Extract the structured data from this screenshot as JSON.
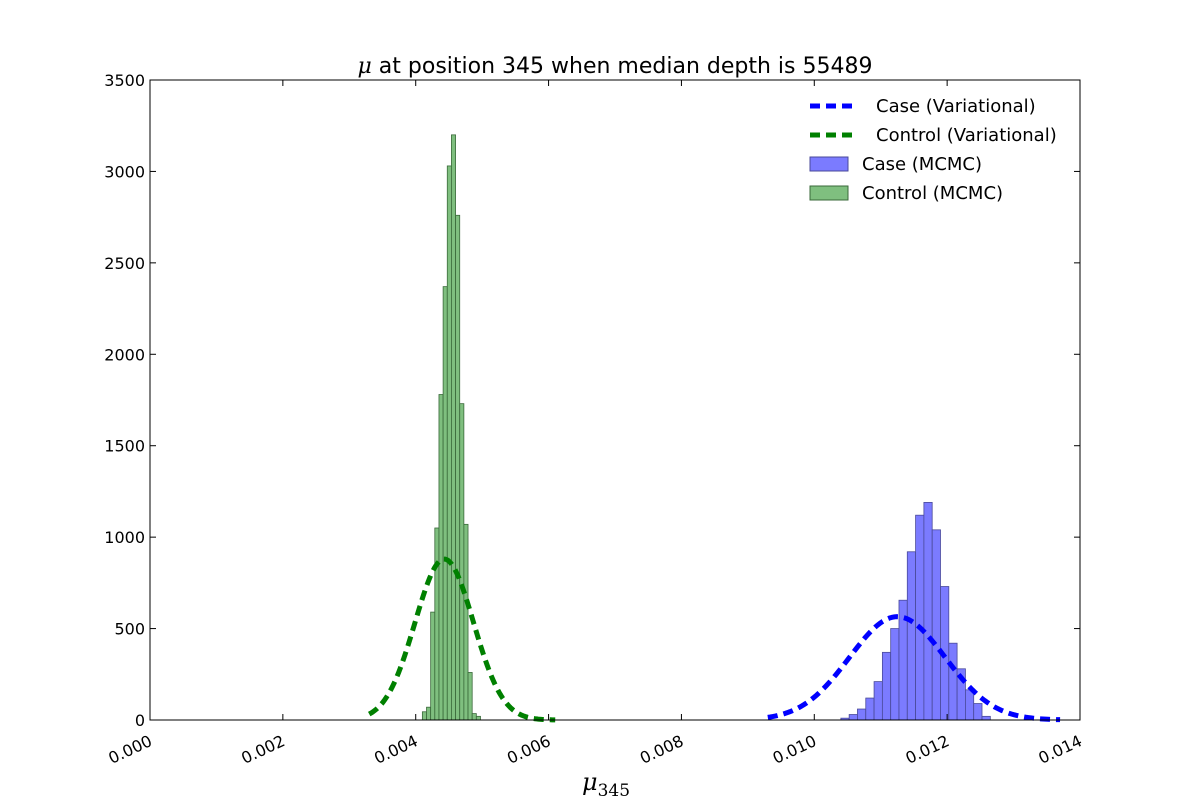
{
  "chart_data": {
    "type": "histogram",
    "title_prefix": "μ",
    "title_rest": " at position 345 when median depth is 55489",
    "xlabel_main": "μ",
    "xlabel_sub": "345",
    "xlim": [
      0.0,
      0.014
    ],
    "ylim": [
      0,
      3500
    ],
    "xticks": [
      0.0,
      0.002,
      0.004,
      0.006,
      0.008,
      0.01,
      0.012,
      0.014
    ],
    "xtick_labels": [
      "0.000",
      "0.002",
      "0.004",
      "0.006",
      "0.008",
      "0.010",
      "0.012",
      "0.014"
    ],
    "yticks": [
      0,
      500,
      1000,
      1500,
      2000,
      2500,
      3000,
      3500
    ],
    "ytick_labels": [
      "0",
      "500",
      "1000",
      "1500",
      "2000",
      "2500",
      "3000",
      "3500"
    ],
    "legend_placement": "top-right",
    "histograms": [
      {
        "name": "Case (MCMC)",
        "color": "#7b7bff",
        "edge": "#4a4a9a",
        "bin_width": 0.000125,
        "bins_start": [
          0.0104,
          0.010525,
          0.01065,
          0.010775,
          0.0109,
          0.011025,
          0.01115,
          0.011275,
          0.0114,
          0.011525,
          0.01165,
          0.011775,
          0.0119,
          0.012025,
          0.01215,
          0.012275,
          0.0124,
          0.012525
        ],
        "counts": [
          10,
          30,
          60,
          120,
          210,
          370,
          500,
          655,
          920,
          1120,
          1190,
          1040,
          730,
          420,
          280,
          165,
          90,
          20
        ]
      },
      {
        "name": "Control (MCMC)",
        "color": "#7fbf7f",
        "edge": "#3a6a3a",
        "bin_width": 6.25e-05,
        "bins_start": [
          0.0041,
          0.0041625,
          0.004225,
          0.0042875,
          0.00435,
          0.0044125,
          0.004475,
          0.0045375,
          0.0046,
          0.0046625,
          0.004725,
          0.0047875,
          0.00485,
          0.0049125
        ],
        "counts": [
          45,
          70,
          590,
          1050,
          1780,
          2370,
          3030,
          3200,
          2760,
          1730,
          1070,
          260,
          35,
          20
        ]
      }
    ],
    "series": [
      {
        "name": "Case (Variational)",
        "color": "#0000ff",
        "mean": 0.01125,
        "sd": 0.00072,
        "peak": 565,
        "x_range": [
          0.0093,
          0.0137
        ]
      },
      {
        "name": "Control (Variational)",
        "color": "#008000",
        "mean": 0.00443,
        "sd": 0.00044,
        "peak": 880,
        "x_range": [
          0.0033,
          0.0061
        ]
      }
    ]
  }
}
